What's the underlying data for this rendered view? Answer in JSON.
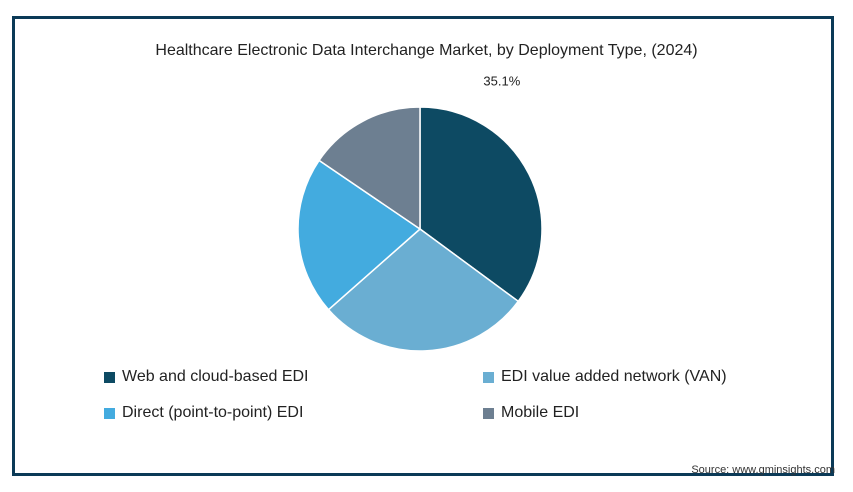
{
  "chart_data": {
    "type": "pie",
    "title": "Healthcare Electronic Data Interchange Market, by Deployment Type,  (2024)",
    "slices": [
      {
        "name": "Web and cloud-based EDI",
        "value": 35.1,
        "label": "35.1%",
        "color": "#0d4a63"
      },
      {
        "name": "EDI value added network (VAN)",
        "value": 28.4,
        "label": "",
        "color": "#6aaed2"
      },
      {
        "name": "Direct (point-to-point) EDI",
        "value": 21.0,
        "label": "",
        "color": "#43abdf"
      },
      {
        "name": "Mobile EDI",
        "value": 15.5,
        "label": "",
        "color": "#6d7f91"
      }
    ],
    "legend_placement": "bottom"
  },
  "source": "Source: www.gminsights.com"
}
